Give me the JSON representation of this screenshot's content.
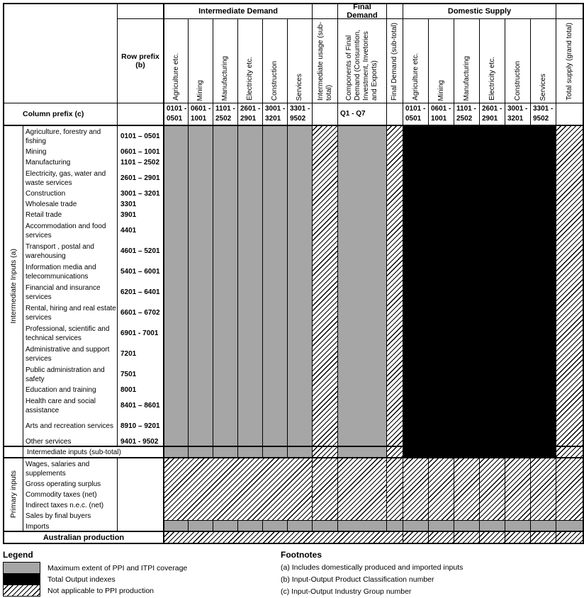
{
  "header": {
    "groups": [
      {
        "label": "Intermediate Demand"
      },
      {
        "label": "Final Demand"
      },
      {
        "label": "Domestic Supply"
      }
    ],
    "row_prefix_label": "Row prefix (b)",
    "column_prefix_label": "Column prefix (c)",
    "columns": [
      {
        "label": "Agriculture etc.",
        "prefix": "0101 - 0501"
      },
      {
        "label": "Mining",
        "prefix": "0601 - 1001"
      },
      {
        "label": "Manufacturing",
        "prefix": "1101 - 2502"
      },
      {
        "label": "Electricity etc.",
        "prefix": "2601 - 2901"
      },
      {
        "label": "Construction",
        "prefix": "3001 - 3201"
      },
      {
        "label": "Services",
        "prefix": "3301 - 9502"
      },
      {
        "label": "Intermediate usage (sub-total)",
        "prefix": ""
      },
      {
        "label": "Components of Final Demand (Consumtion, Investment, Invetories and Exports)",
        "prefix": "Q1 - Q7"
      },
      {
        "label": "Final Demand (sub-total)",
        "prefix": ""
      },
      {
        "label": "Agriculture etc.",
        "prefix": "0101 - 0501"
      },
      {
        "label": "Mining",
        "prefix": "0601 - 1001"
      },
      {
        "label": "Manufacturing",
        "prefix": "1101 - 2502"
      },
      {
        "label": "Electricity etc.",
        "prefix": "2601 - 2901"
      },
      {
        "label": "Construction",
        "prefix": "3001 - 3201"
      },
      {
        "label": "Services",
        "prefix": "3301 - 9502"
      },
      {
        "label": "Total supply (grand total)",
        "prefix": ""
      }
    ]
  },
  "intermediate": {
    "side_label": "Intermediate Inputs (a)",
    "rows": [
      {
        "label": "Agriculture, forestry and fishing",
        "prefix": "0101 – 0501"
      },
      {
        "label": "Mining",
        "prefix": "0601 – 1001"
      },
      {
        "label": "Manufacturing",
        "prefix": "1101 – 2502"
      },
      {
        "label": "Electricity, gas, water and waste services",
        "prefix": "2601 – 2901"
      },
      {
        "label": "Construction",
        "prefix": "3001 – 3201"
      },
      {
        "label": "Wholesale trade",
        "prefix": "3301"
      },
      {
        "label": "Retail trade",
        "prefix": "3901"
      },
      {
        "label": "Accommodation and food services",
        "prefix": "4401"
      },
      {
        "label": "Transport , postal and warehousing",
        "prefix": "4601 – 5201"
      },
      {
        "label": "Information media and telecommunications",
        "prefix": "5401 – 6001"
      },
      {
        "label": "Financial and insurance services",
        "prefix": "6201 – 6401"
      },
      {
        "label": "Rental, hiring and real estate services",
        "prefix": "6601 – 6702"
      },
      {
        "label": "Professional, scientific and technical services",
        "prefix": "6901 - 7001"
      },
      {
        "label": "Administrative and support services",
        "prefix": "7201"
      },
      {
        "label": "Public administration and safety",
        "prefix": "7501"
      },
      {
        "label": "Education and training",
        "prefix": "8001"
      },
      {
        "label": "Health care and social assistance",
        "prefix": "8401 – 8601"
      },
      {
        "label": "Arts and recreation services",
        "prefix": "8910 – 9201"
      },
      {
        "label": "Other services",
        "prefix": "9401 - 9502"
      }
    ],
    "subtotal_label": "Intermediate inputs (sub-total)"
  },
  "primary": {
    "side_label": "Primary inputs",
    "rows": [
      {
        "label": "Wages, salaries and supplements"
      },
      {
        "label": "Gross operating surplus"
      },
      {
        "label": "Commodity taxes (net)"
      },
      {
        "label": "Indirect taxes n.e.c. (net)"
      },
      {
        "label": "Sales by final buyers"
      },
      {
        "label": "Imports"
      }
    ]
  },
  "australian_production_label": "Australian production",
  "legend": {
    "title": "Legend",
    "items": [
      {
        "swatch": "gray",
        "label": "Maximum extent of PPI and ITPI coverage"
      },
      {
        "swatch": "black",
        "label": "Total Output indexes"
      },
      {
        "swatch": "hatch",
        "label": "Not applicable to PPI production"
      }
    ]
  },
  "footnotes": {
    "title": "Footnotes",
    "items": [
      "(a) Includes domestically produced and imported inputs",
      "(b) Input-Output Product Classification number",
      "(c) Input-Output Industry Group number"
    ]
  },
  "colors": {
    "coverage_gray": "#A6A6A6",
    "output_black": "#000000",
    "line_black": "#000000"
  }
}
